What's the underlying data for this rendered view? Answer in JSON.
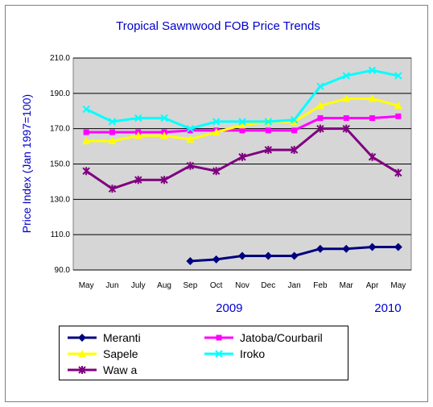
{
  "chart_data": {
    "type": "line",
    "title": "Tropical Sawnwood FOB Price Trends",
    "ylabel": "Price Index (Jan 1997=100)",
    "xlabel": "",
    "categories": [
      "May",
      "Jun",
      "July",
      "Aug",
      "Sep",
      "Oct",
      "Nov",
      "Dec",
      "Jan",
      "Feb",
      "Mar",
      "Apr",
      "May"
    ],
    "year_labels": [
      {
        "label": "2009",
        "category_index": 5.5
      },
      {
        "label": "2010",
        "category_index": 11.6
      }
    ],
    "yticks": [
      "90.0",
      "110.0",
      "130.0",
      "150.0",
      "170.0",
      "190.0",
      "210.0"
    ],
    "ylim": [
      90,
      210
    ],
    "grid": "horizontal",
    "legend_position": "bottom",
    "series": [
      {
        "name": "Meranti",
        "color": "#00007f",
        "marker": "diamond",
        "values": [
          null,
          null,
          null,
          null,
          95,
          96,
          98,
          98,
          98,
          102,
          102,
          103,
          103
        ]
      },
      {
        "name": "Jatoba/Courbaril",
        "color": "#ff00ff",
        "marker": "square",
        "values": [
          168,
          168,
          168,
          168,
          169,
          169,
          169,
          169,
          169,
          176,
          176,
          176,
          177
        ]
      },
      {
        "name": "Sapele",
        "color": "#ffff00",
        "marker": "triangle",
        "values": [
          163,
          163,
          166,
          166,
          164,
          168,
          172,
          174,
          174,
          183,
          187,
          187,
          183
        ]
      },
      {
        "name": "Iroko",
        "color": "#00ffff",
        "marker": "x",
        "values": [
          181,
          174,
          176,
          176,
          170,
          174,
          174,
          174,
          175,
          194,
          200,
          203,
          200
        ]
      },
      {
        "name": "Waw a",
        "color": "#7f007f",
        "marker": "star",
        "values": [
          146,
          136,
          141,
          141,
          149,
          146,
          154,
          158,
          158,
          170,
          170,
          154,
          145
        ]
      }
    ]
  }
}
